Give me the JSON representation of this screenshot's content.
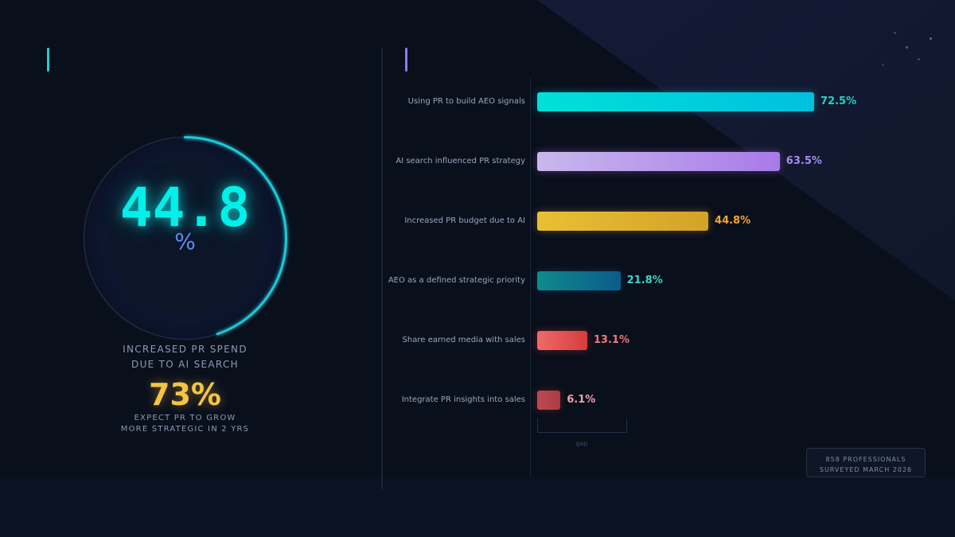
{
  "gauge": {
    "value": "44.8",
    "unit": "%",
    "fraction": 0.448,
    "caption_line1": "INCREASED PR SPEND",
    "caption_line2": "DUE TO AI SEARCH",
    "ring_color": "#1fc8d8"
  },
  "secondary": {
    "value": "73%",
    "caption_line1": "EXPECT PR TO GROW",
    "caption_line2": "MORE STRATEGIC IN 2 YRS"
  },
  "chart_data": {
    "type": "bar",
    "orientation": "horizontal",
    "categories": [
      "Using PR to build AEO signals",
      "AI search influenced PR strategy",
      "Increased PR budget due to AI",
      "AEO as a defined strategic priority",
      "Share earned media with sales",
      "Integrate PR insights into sales"
    ],
    "values": [
      72.5,
      63.5,
      44.8,
      21.8,
      13.1,
      6.1
    ],
    "value_labels": [
      "72.5%",
      "63.5%",
      "44.8%",
      "21.8%",
      "13.1%",
      "6.1%"
    ],
    "xlim": [
      0,
      100
    ],
    "grid": false,
    "colors": [
      {
        "from": "#00e0d8",
        "to": "#00c0de",
        "label": "#22d3c5"
      },
      {
        "from": "#c8b8ec",
        "to": "#a87ae8",
        "label": "#a68cf0"
      },
      {
        "from": "#e8c034",
        "to": "#d4a228",
        "label": "#f0a830"
      },
      {
        "from": "#0e8a8c",
        "to": "#0c5c8a",
        "label": "#3fd6c0"
      },
      {
        "from": "#f06a6a",
        "to": "#d63c3c",
        "label": "#f07878"
      },
      {
        "from": "#c04a50",
        "to": "#a83c44",
        "label": "#f3a0a8"
      }
    ],
    "annotation": "gap"
  },
  "footer": {
    "line1": "858 PROFESSIONALS",
    "line2": "SURVEYED MARCH 2026"
  }
}
